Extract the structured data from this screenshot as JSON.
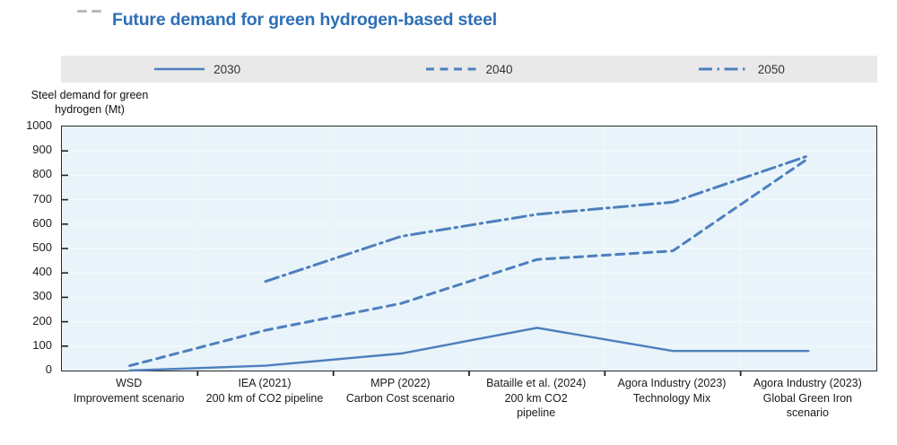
{
  "title": "Future demand for green hydrogen-based steel",
  "y_axis": {
    "title": "Steel demand for green\nhydrogen (Mt)",
    "tick_labels": [
      "1000",
      "900",
      "800",
      "700",
      "600",
      "500",
      "400",
      "300",
      "200",
      "100",
      "0"
    ]
  },
  "legend": {
    "items": [
      "2030",
      "2040",
      "2050"
    ],
    "position": "top"
  },
  "chart_data": {
    "type": "line",
    "title": "Future demand for green hydrogen-based steel",
    "xlabel": "",
    "ylabel": "Steel demand for green hydrogen (Mt)",
    "ylim": [
      0,
      1000
    ],
    "ytick_step": 100,
    "grid": "faint horizontal and vertical gridlines on light blue panel",
    "legend_position": "top strip",
    "categories": [
      "WSD\nImprovement scenario",
      "IEA (2021)\n200 km of CO2 pipeline",
      "MPP (2022)\nCarbon Cost scenario",
      "Bataille et al. (2024)\n200 km CO2\npipeline",
      "Agora Industry (2023)\nTechnology Mix",
      "Agora Industry (2023)\nGlobal Green Iron\nscenario"
    ],
    "series": [
      {
        "name": "2030",
        "line_style": "solid",
        "values": [
          0,
          20,
          70,
          175,
          80,
          80
        ]
      },
      {
        "name": "2040",
        "line_style": "dashed",
        "values": [
          20,
          165,
          275,
          455,
          490,
          870
        ]
      },
      {
        "name": "2050",
        "line_style": "dash-dot",
        "values": [
          null,
          365,
          550,
          640,
          690,
          880
        ]
      }
    ]
  },
  "colors": {
    "series_line": "#4e7fbe",
    "title_text": "#2e6fb7",
    "legend_bg": "#e9e9e9",
    "plot_bg": "#e8f4f9",
    "axis_frame": "#2b2b2b",
    "gridline": "#ffffff"
  }
}
